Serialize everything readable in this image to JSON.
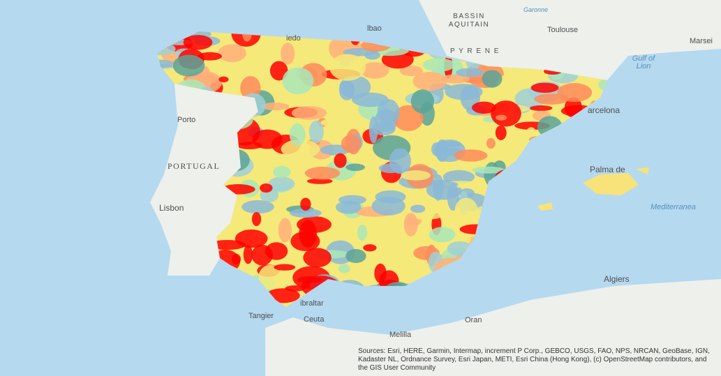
{
  "labels": [
    "BASSIN",
    "AQUITAIN",
    "Garonne",
    "Toulouse",
    "Marsei",
    "Gulf of",
    "Lion",
    "P Y R E N E",
    "Porto",
    "PORTUGAL",
    "Lisbon",
    "arcelona",
    "Palma de",
    "Mediterranea",
    "Algiers",
    "Oran",
    "Melilla",
    "Tangier",
    "Ceuta",
    "ibraltar",
    "lbao",
    "iedo"
  ],
  "attribution": "Sources: Esri, HERE, Garmin, Intermap, increment P Corp., GEBCO, USGS, FAO, NPS, NRCAN, GeoBase, IGN, Kadaster NL, Ordnance Survey, Esri Japan, METI, Esri China (Hong Kong), (c) OpenStreetMap contributors, and the GIS User Community"
}
